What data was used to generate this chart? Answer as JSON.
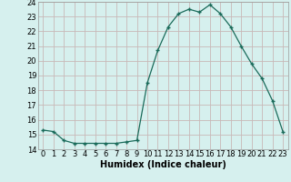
{
  "x": [
    0,
    1,
    2,
    3,
    4,
    5,
    6,
    7,
    8,
    9,
    10,
    11,
    12,
    13,
    14,
    15,
    16,
    17,
    18,
    19,
    20,
    21,
    22,
    23
  ],
  "y": [
    15.3,
    15.2,
    14.6,
    14.4,
    14.4,
    14.4,
    14.4,
    14.4,
    14.5,
    14.6,
    18.5,
    20.7,
    22.3,
    23.2,
    23.5,
    23.3,
    23.8,
    23.2,
    22.3,
    21.0,
    19.8,
    18.8,
    17.3,
    15.2
  ],
  "line_color": "#1a6b5a",
  "marker": "P",
  "marker_size": 2.5,
  "bg_color": "#d6f0ee",
  "grid_color": "#c8b8b8",
  "xlabel": "Humidex (Indice chaleur)",
  "ylim": [
    14,
    24
  ],
  "xlim": [
    -0.5,
    23.5
  ],
  "yticks": [
    14,
    15,
    16,
    17,
    18,
    19,
    20,
    21,
    22,
    23,
    24
  ],
  "xticks": [
    0,
    1,
    2,
    3,
    4,
    5,
    6,
    7,
    8,
    9,
    10,
    11,
    12,
    13,
    14,
    15,
    16,
    17,
    18,
    19,
    20,
    21,
    22,
    23
  ],
  "xlabel_fontsize": 7,
  "tick_fontsize": 6
}
